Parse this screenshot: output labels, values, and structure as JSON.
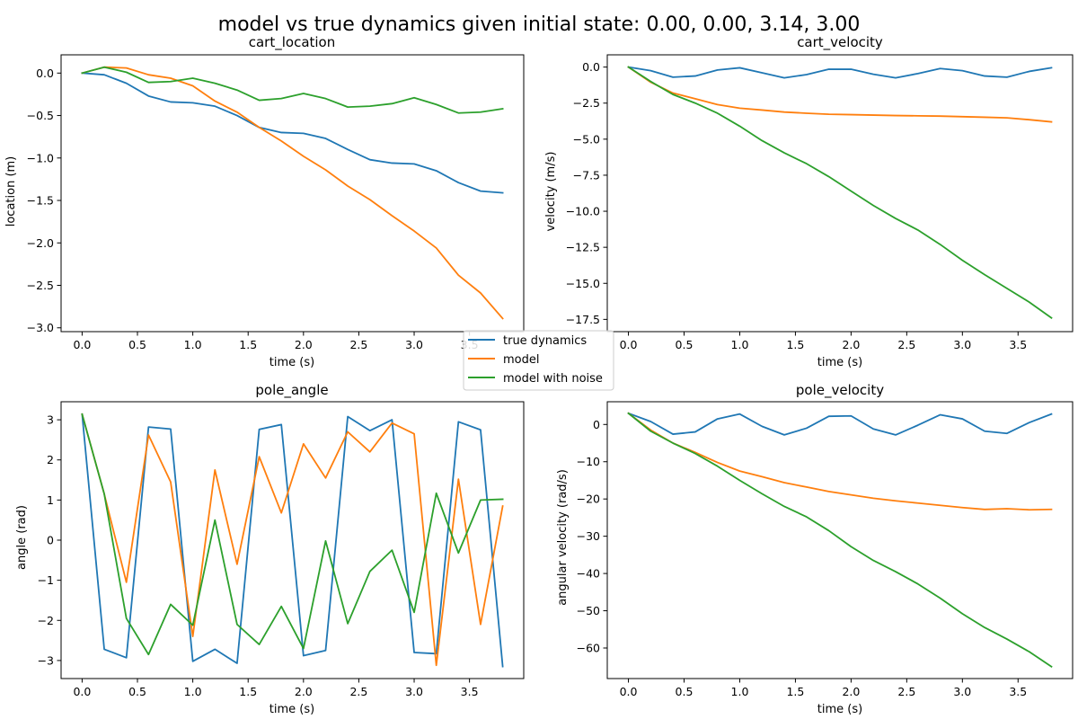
{
  "title": "model vs true dynamics given initial state: 0.00, 0.00, 3.14, 3.00",
  "legend": {
    "placement": "center",
    "entries": [
      {
        "name": "true dynamics",
        "color": "#1f77b4"
      },
      {
        "name": "model",
        "color": "#ff7f0e"
      },
      {
        "name": "model with noise",
        "color": "#2ca02c"
      }
    ]
  },
  "chart_data": [
    {
      "type": "line",
      "title": "cart_location",
      "xlabel": "time (s)",
      "ylabel": "location (m)",
      "xlim": [
        -0.19,
        3.99
      ],
      "ylim": [
        -3.045,
        0.215
      ],
      "xticks": [
        0.0,
        0.5,
        1.0,
        1.5,
        2.0,
        2.5,
        3.0,
        3.5
      ],
      "xtick_labels": [
        "0.0",
        "0.5",
        "1.0",
        "1.5",
        "2.0",
        "2.5",
        "3.0",
        "3.5"
      ],
      "yticks": [
        0.0,
        -0.5,
        -1.0,
        -1.5,
        -2.0,
        -2.5,
        -3.0
      ],
      "ytick_labels": [
        "0.0",
        "−0.5",
        "−1.0",
        "−1.5",
        "−2.0",
        "−2.5",
        "−3.0"
      ],
      "grid": false,
      "x": [
        0.0,
        0.2,
        0.4,
        0.6,
        0.8,
        1.0,
        1.2,
        1.4,
        1.6,
        1.8,
        2.0,
        2.2,
        2.4,
        2.6,
        2.8,
        3.0,
        3.2,
        3.4,
        3.6,
        3.8
      ],
      "series": [
        {
          "name": "true dynamics",
          "values": [
            0.0,
            -0.02,
            -0.12,
            -0.27,
            -0.34,
            -0.35,
            -0.39,
            -0.5,
            -0.64,
            -0.7,
            -0.71,
            -0.77,
            -0.9,
            -1.02,
            -1.06,
            -1.07,
            -1.15,
            -1.29,
            -1.39,
            -1.41
          ]
        },
        {
          "name": "model",
          "values": [
            0.0,
            0.07,
            0.06,
            -0.02,
            -0.06,
            -0.15,
            -0.33,
            -0.46,
            -0.64,
            -0.8,
            -0.98,
            -1.14,
            -1.33,
            -1.49,
            -1.68,
            -1.86,
            -2.06,
            -2.38,
            -2.59,
            -2.89
          ]
        },
        {
          "name": "model with noise",
          "values": [
            0.0,
            0.07,
            0.01,
            -0.11,
            -0.1,
            -0.06,
            -0.12,
            -0.2,
            -0.32,
            -0.3,
            -0.24,
            -0.3,
            -0.4,
            -0.39,
            -0.36,
            -0.29,
            -0.37,
            -0.47,
            -0.46,
            -0.42
          ]
        }
      ]
    },
    {
      "type": "line",
      "title": "cart_velocity",
      "xlabel": "time (s)",
      "ylabel": "velocity (m/s)",
      "xlim": [
        -0.19,
        3.99
      ],
      "ylim": [
        -18.35,
        0.85
      ],
      "xticks": [
        0.0,
        0.5,
        1.0,
        1.5,
        2.0,
        2.5,
        3.0,
        3.5
      ],
      "xtick_labels": [
        "0.0",
        "0.5",
        "1.0",
        "1.5",
        "2.0",
        "2.5",
        "3.0",
        "3.5"
      ],
      "yticks": [
        0.0,
        -2.5,
        -5.0,
        -7.5,
        -10.0,
        -12.5,
        -15.0,
        -17.5
      ],
      "ytick_labels": [
        "0.0",
        "−2.5",
        "−5.0",
        "−7.5",
        "−10.0",
        "−12.5",
        "−15.0",
        "−17.5"
      ],
      "grid": false,
      "x": [
        0.0,
        0.2,
        0.4,
        0.6,
        0.8,
        1.0,
        1.2,
        1.4,
        1.6,
        1.8,
        2.0,
        2.2,
        2.4,
        2.6,
        2.8,
        3.0,
        3.2,
        3.4,
        3.6,
        3.8
      ],
      "series": [
        {
          "name": "true dynamics",
          "values": [
            0.0,
            -0.25,
            -0.7,
            -0.62,
            -0.2,
            -0.05,
            -0.4,
            -0.75,
            -0.52,
            -0.15,
            -0.15,
            -0.5,
            -0.75,
            -0.45,
            -0.1,
            -0.25,
            -0.62,
            -0.7,
            -0.3,
            -0.05
          ]
        },
        {
          "name": "model",
          "values": [
            0.0,
            -1.05,
            -1.8,
            -2.2,
            -2.6,
            -2.85,
            -2.98,
            -3.12,
            -3.2,
            -3.27,
            -3.3,
            -3.33,
            -3.36,
            -3.38,
            -3.4,
            -3.44,
            -3.48,
            -3.52,
            -3.65,
            -3.8
          ]
        },
        {
          "name": "model with noise",
          "values": [
            0.0,
            -1.0,
            -1.9,
            -2.5,
            -3.2,
            -4.1,
            -5.1,
            -5.95,
            -6.7,
            -7.6,
            -8.6,
            -9.6,
            -10.5,
            -11.3,
            -12.3,
            -13.4,
            -14.4,
            -15.35,
            -16.3,
            -17.4
          ]
        }
      ]
    },
    {
      "type": "line",
      "title": "pole_angle",
      "xlabel": "time (s)",
      "ylabel": "angle (rad)",
      "xlim": [
        -0.19,
        3.99
      ],
      "ylim": [
        -3.45,
        3.45
      ],
      "xticks": [
        0.0,
        0.5,
        1.0,
        1.5,
        2.0,
        2.5,
        3.0,
        3.5
      ],
      "xtick_labels": [
        "0.0",
        "0.5",
        "1.0",
        "1.5",
        "2.0",
        "2.5",
        "3.0",
        "3.5"
      ],
      "yticks": [
        3,
        2,
        1,
        0,
        -1,
        -2,
        -3
      ],
      "ytick_labels": [
        "3",
        "2",
        "1",
        "0",
        "−1",
        "−2",
        "−3"
      ],
      "grid": false,
      "x": [
        0.0,
        0.2,
        0.4,
        0.6,
        0.8,
        1.0,
        1.2,
        1.4,
        1.6,
        1.8,
        2.0,
        2.2,
        2.4,
        2.6,
        2.8,
        3.0,
        3.2,
        3.4,
        3.6,
        3.8
      ],
      "series": [
        {
          "name": "true dynamics",
          "values": [
            3.14,
            -2.72,
            -2.93,
            2.82,
            2.77,
            -3.02,
            -2.72,
            -3.07,
            2.76,
            2.88,
            -2.88,
            -2.75,
            3.08,
            2.73,
            3.0,
            -2.8,
            -2.83,
            2.95,
            2.75,
            -3.15
          ]
        },
        {
          "name": "model",
          "values": [
            3.14,
            1.15,
            -1.05,
            2.62,
            1.45,
            -2.4,
            1.75,
            -0.6,
            2.08,
            0.68,
            2.4,
            1.55,
            2.7,
            2.2,
            2.92,
            2.65,
            -3.12,
            1.52,
            -2.1,
            0.85
          ]
        },
        {
          "name": "model with noise",
          "values": [
            3.14,
            1.15,
            -1.95,
            -2.85,
            -1.6,
            -2.12,
            0.5,
            -2.1,
            -2.6,
            -1.65,
            -2.7,
            -0.02,
            -2.08,
            -0.78,
            -0.25,
            -1.8,
            1.17,
            -0.32,
            1.0,
            1.02
          ]
        }
      ]
    },
    {
      "type": "line",
      "title": "pole_velocity",
      "xlabel": "time (s)",
      "ylabel": "angular velocity (rad/s)",
      "xlim": [
        -0.19,
        3.99
      ],
      "ylim": [
        -68.2,
        6.1
      ],
      "xticks": [
        0.0,
        0.5,
        1.0,
        1.5,
        2.0,
        2.5,
        3.0,
        3.5
      ],
      "xtick_labels": [
        "0.0",
        "0.5",
        "1.0",
        "1.5",
        "2.0",
        "2.5",
        "3.0",
        "3.5"
      ],
      "yticks": [
        0,
        -10,
        -20,
        -30,
        -40,
        -50,
        -60
      ],
      "ytick_labels": [
        "0",
        "−10",
        "−20",
        "−30",
        "−40",
        "−50",
        "−60"
      ],
      "grid": false,
      "x": [
        0.0,
        0.2,
        0.4,
        0.6,
        0.8,
        1.0,
        1.2,
        1.4,
        1.6,
        1.8,
        2.0,
        2.2,
        2.4,
        2.6,
        2.8,
        3.0,
        3.2,
        3.4,
        3.6,
        3.8
      ],
      "series": [
        {
          "name": "true dynamics",
          "values": [
            3.0,
            0.8,
            -2.6,
            -2.0,
            1.5,
            2.8,
            -0.5,
            -2.8,
            -1.0,
            2.2,
            2.3,
            -1.2,
            -2.8,
            -0.2,
            2.6,
            1.5,
            -1.8,
            -2.4,
            0.5,
            2.8
          ]
        },
        {
          "name": "model",
          "values": [
            3.0,
            -1.5,
            -5.0,
            -7.5,
            -10.2,
            -12.5,
            -14.0,
            -15.6,
            -16.8,
            -18.0,
            -18.9,
            -19.8,
            -20.5,
            -21.1,
            -21.7,
            -22.3,
            -22.8,
            -22.6,
            -22.9,
            -22.8
          ]
        },
        {
          "name": "model with noise",
          "values": [
            3.0,
            -1.8,
            -5.0,
            -7.8,
            -11.2,
            -15.0,
            -18.6,
            -22.0,
            -24.8,
            -28.5,
            -32.8,
            -36.5,
            -39.5,
            -42.8,
            -46.6,
            -50.8,
            -54.5,
            -57.6,
            -61.0,
            -65.0
          ]
        }
      ]
    }
  ]
}
